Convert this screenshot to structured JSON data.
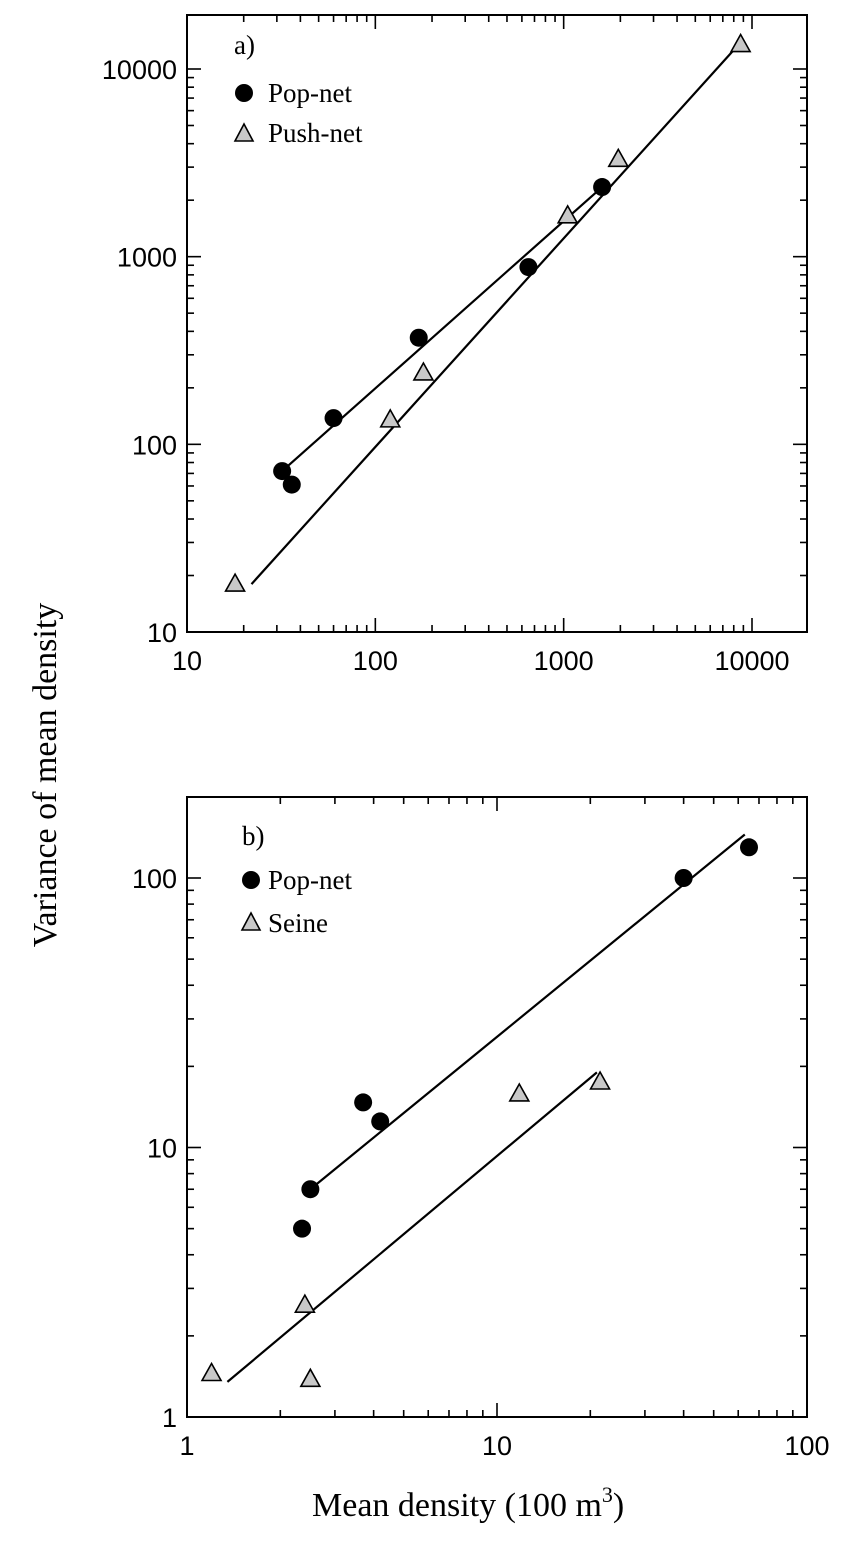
{
  "ylabel": "Variance of mean density",
  "xlabel": "Mean density (100 m",
  "xlabel_sup": "3",
  "xlabel_end": ")",
  "chart_data": [
    {
      "type": "scatter",
      "panel_label": "a)",
      "xscale": "log",
      "yscale": "log",
      "xlim": [
        10,
        20000
      ],
      "ylim": [
        10,
        20000
      ],
      "xticks": [
        10,
        100,
        1000,
        10000
      ],
      "xtick_labels": [
        "10",
        "100",
        "1000",
        "10000"
      ],
      "yticks": [
        10,
        100,
        1000,
        10000
      ],
      "ytick_labels": [
        "10",
        "100",
        "1000",
        "10000"
      ],
      "legend_position": "top-left",
      "grid": false,
      "series": [
        {
          "name": "Pop-net",
          "marker": "filled-circle",
          "color": "#000000",
          "points": [
            [
              32,
              72
            ],
            [
              36,
              61
            ],
            [
              60,
              138
            ],
            [
              170,
              370
            ],
            [
              650,
              880
            ],
            [
              1600,
              2350
            ]
          ],
          "fit": [
            [
              32,
              72
            ],
            [
              1600,
              2350
            ]
          ]
        },
        {
          "name": "Push-net",
          "marker": "gray-triangle",
          "color": "#c8c8c8",
          "points": [
            [
              18,
              18
            ],
            [
              120,
              135
            ],
            [
              180,
              240
            ],
            [
              1050,
              1650
            ],
            [
              1950,
              3300
            ],
            [
              8700,
              13500
            ]
          ],
          "fit": [
            [
              22,
              18
            ],
            [
              8500,
              13500
            ]
          ]
        }
      ]
    },
    {
      "type": "scatter",
      "panel_label": "b)",
      "xscale": "log",
      "yscale": "log",
      "xlim": [
        1,
        100
      ],
      "ylim": [
        1,
        200
      ],
      "xticks": [
        1,
        10,
        100
      ],
      "xtick_labels": [
        "1",
        "10",
        "100"
      ],
      "yticks": [
        1,
        10,
        100
      ],
      "ytick_labels": [
        "1",
        "10",
        "100"
      ],
      "legend_position": "top-left",
      "grid": false,
      "series": [
        {
          "name": "Pop-net",
          "marker": "filled-circle",
          "color": "#000000",
          "points": [
            [
              2.35,
              5.0
            ],
            [
              2.5,
              7.0
            ],
            [
              3.7,
              14.7
            ],
            [
              4.2,
              12.5
            ],
            [
              40,
              100
            ],
            [
              65,
              130
            ]
          ],
          "fit": [
            [
              2.5,
              7.0
            ],
            [
              63,
              145
            ]
          ]
        },
        {
          "name": "Seine",
          "marker": "gray-triangle",
          "color": "#c8c8c8",
          "points": [
            [
              1.2,
              1.45
            ],
            [
              2.4,
              2.6
            ],
            [
              2.5,
              1.38
            ],
            [
              11.8,
              15.8
            ],
            [
              21.5,
              17.5
            ]
          ],
          "fit": [
            [
              1.35,
              1.35
            ],
            [
              21,
              19
            ]
          ]
        }
      ]
    }
  ]
}
